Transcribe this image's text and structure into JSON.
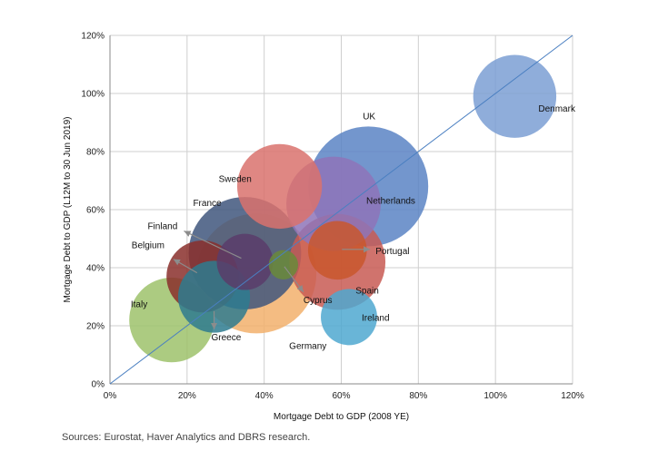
{
  "chart_data": {
    "type": "scatter",
    "title": "",
    "xlabel": "Mortgage Debt to GDP (2008 YE)",
    "ylabel": "Mortgage Debt to GDP (L12M to 30 Jun 2019)",
    "xlim": [
      0,
      120
    ],
    "ylim": [
      0,
      120
    ],
    "x_ticks": [
      "0%",
      "20%",
      "40%",
      "60%",
      "80%",
      "100%",
      "120%"
    ],
    "y_ticks": [
      "0%",
      "20%",
      "40%",
      "60%",
      "80%",
      "100%",
      "120%"
    ],
    "grid": true,
    "reference_line": "y = x",
    "points": [
      {
        "name": "Germany",
        "x": 38,
        "y": 38,
        "size": 50,
        "color": "#f2b06c"
      },
      {
        "name": "UK",
        "x": 67,
        "y": 68,
        "size": 50,
        "color": "#5b84c4"
      },
      {
        "name": "France",
        "x": 35,
        "y": 45,
        "size": 44,
        "color": "#3f567d"
      },
      {
        "name": "Netherlands",
        "x": 58,
        "y": 62,
        "size": 31,
        "color": "#8e74b8"
      },
      {
        "name": "Spain",
        "x": 59,
        "y": 42,
        "size": 32,
        "color": "#c85a54"
      },
      {
        "name": "Italy",
        "x": 16,
        "y": 22,
        "size": 25,
        "color": "#9ec26b"
      },
      {
        "name": "Sweden",
        "x": 44,
        "y": 68,
        "size": 25,
        "color": "#d9726d"
      },
      {
        "name": "Denmark",
        "x": 105,
        "y": 99,
        "size": 24,
        "color": "#7b9fd4"
      },
      {
        "name": "Belgium",
        "x": 24,
        "y": 37,
        "size": 18,
        "color": "#8a2f2b"
      },
      {
        "name": "Greece",
        "x": 27,
        "y": 30,
        "size": 18,
        "color": "#2e7b8f"
      },
      {
        "name": "Portugal",
        "x": 59,
        "y": 46,
        "size": 12,
        "color": "#c9572d"
      },
      {
        "name": "Finland",
        "x": 35,
        "y": 42,
        "size": 11,
        "color": "#5a3c6a"
      },
      {
        "name": "Ireland",
        "x": 62,
        "y": 23,
        "size": 11,
        "color": "#4fa8d0"
      },
      {
        "name": "Cyprus",
        "x": 45,
        "y": 41,
        "size": 3,
        "color": "#6a8a3a"
      }
    ]
  },
  "source_note": "Sources: Eurostat, Haver Analytics and DBRS research."
}
